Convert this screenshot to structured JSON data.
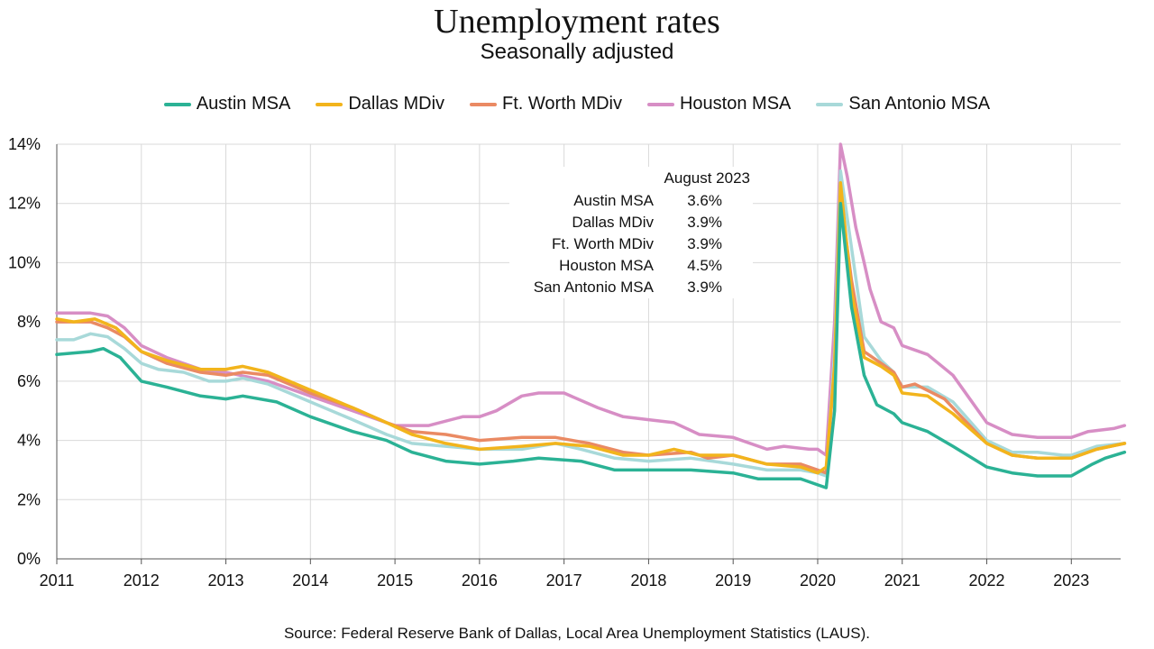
{
  "chart_data": {
    "type": "line",
    "title": "Unemployment rates",
    "subtitle": "Seasonally adjusted",
    "source": "Source:  Federal Reserve Bank of Dallas,  Local Area Unemployment Statistics (LAUS).",
    "x_ticks": [
      "2011",
      "2012",
      "2013",
      "2014",
      "2015",
      "2016",
      "2017",
      "2018",
      "2019",
      "2020",
      "2021",
      "2022",
      "2023"
    ],
    "y_ticks": [
      "0%",
      "2%",
      "4%",
      "6%",
      "8%",
      "10%",
      "12%",
      "14%"
    ],
    "ylim": [
      0,
      14
    ],
    "xlim": [
      "2011-01",
      "2023-08"
    ],
    "grid": true,
    "legend_position": "top",
    "annotation": {
      "header": "August 2023",
      "rows": [
        {
          "name": "Austin MSA",
          "value": "3.6%"
        },
        {
          "name": "Dallas MDiv",
          "value": "3.9%"
        },
        {
          "name": "Ft. Worth MDiv",
          "value": "3.9%"
        },
        {
          "name": "Houston MSA",
          "value": "4.5%"
        },
        {
          "name": "San Antonio MSA",
          "value": "3.9%"
        }
      ]
    },
    "series": [
      {
        "name": "Austin MSA",
        "color": "#2bb295",
        "points": [
          [
            2011.0,
            6.9
          ],
          [
            2011.4,
            7.0
          ],
          [
            2011.55,
            7.1
          ],
          [
            2011.75,
            6.8
          ],
          [
            2012.0,
            6.0
          ],
          [
            2012.3,
            5.8
          ],
          [
            2012.7,
            5.5
          ],
          [
            2013.0,
            5.4
          ],
          [
            2013.2,
            5.5
          ],
          [
            2013.6,
            5.3
          ],
          [
            2014.0,
            4.8
          ],
          [
            2014.5,
            4.3
          ],
          [
            2014.9,
            4.0
          ],
          [
            2015.2,
            3.6
          ],
          [
            2015.6,
            3.3
          ],
          [
            2016.0,
            3.2
          ],
          [
            2016.4,
            3.3
          ],
          [
            2016.7,
            3.4
          ],
          [
            2017.2,
            3.3
          ],
          [
            2017.6,
            3.0
          ],
          [
            2018.0,
            3.0
          ],
          [
            2018.5,
            3.0
          ],
          [
            2019.0,
            2.9
          ],
          [
            2019.3,
            2.7
          ],
          [
            2019.8,
            2.7
          ],
          [
            2020.0,
            2.5
          ],
          [
            2020.1,
            2.4
          ],
          [
            2020.2,
            5.0
          ],
          [
            2020.27,
            12.0
          ],
          [
            2020.4,
            8.5
          ],
          [
            2020.55,
            6.2
          ],
          [
            2020.7,
            5.2
          ],
          [
            2020.9,
            4.9
          ],
          [
            2021.0,
            4.6
          ],
          [
            2021.3,
            4.3
          ],
          [
            2021.6,
            3.8
          ],
          [
            2022.0,
            3.1
          ],
          [
            2022.3,
            2.9
          ],
          [
            2022.6,
            2.8
          ],
          [
            2022.9,
            2.8
          ],
          [
            2023.0,
            2.8
          ],
          [
            2023.25,
            3.2
          ],
          [
            2023.4,
            3.4
          ],
          [
            2023.63,
            3.6
          ]
        ]
      },
      {
        "name": "Dallas MDiv",
        "color": "#f2b41c",
        "points": [
          [
            2011.0,
            8.1
          ],
          [
            2011.2,
            8.0
          ],
          [
            2011.45,
            8.1
          ],
          [
            2011.7,
            7.8
          ],
          [
            2012.0,
            7.0
          ],
          [
            2012.3,
            6.7
          ],
          [
            2012.7,
            6.4
          ],
          [
            2013.0,
            6.4
          ],
          [
            2013.2,
            6.5
          ],
          [
            2013.5,
            6.3
          ],
          [
            2014.0,
            5.7
          ],
          [
            2014.5,
            5.1
          ],
          [
            2014.9,
            4.6
          ],
          [
            2015.2,
            4.2
          ],
          [
            2015.6,
            3.9
          ],
          [
            2016.0,
            3.7
          ],
          [
            2016.5,
            3.8
          ],
          [
            2016.9,
            3.9
          ],
          [
            2017.3,
            3.8
          ],
          [
            2017.7,
            3.5
          ],
          [
            2018.0,
            3.5
          ],
          [
            2018.3,
            3.7
          ],
          [
            2018.6,
            3.5
          ],
          [
            2019.0,
            3.5
          ],
          [
            2019.4,
            3.2
          ],
          [
            2019.8,
            3.1
          ],
          [
            2020.0,
            2.9
          ],
          [
            2020.1,
            3.1
          ],
          [
            2020.2,
            6.5
          ],
          [
            2020.27,
            12.7
          ],
          [
            2020.4,
            9.0
          ],
          [
            2020.55,
            6.8
          ],
          [
            2020.75,
            6.5
          ],
          [
            2020.9,
            6.2
          ],
          [
            2021.0,
            5.6
          ],
          [
            2021.3,
            5.5
          ],
          [
            2021.6,
            4.9
          ],
          [
            2022.0,
            3.9
          ],
          [
            2022.3,
            3.5
          ],
          [
            2022.6,
            3.4
          ],
          [
            2022.9,
            3.4
          ],
          [
            2023.0,
            3.4
          ],
          [
            2023.3,
            3.7
          ],
          [
            2023.63,
            3.9
          ]
        ]
      },
      {
        "name": "Ft. Worth MDiv",
        "color": "#ea8a63",
        "points": [
          [
            2011.0,
            8.0
          ],
          [
            2011.4,
            8.0
          ],
          [
            2011.6,
            7.8
          ],
          [
            2011.8,
            7.5
          ],
          [
            2012.0,
            7.0
          ],
          [
            2012.3,
            6.6
          ],
          [
            2012.7,
            6.3
          ],
          [
            2013.0,
            6.2
          ],
          [
            2013.2,
            6.3
          ],
          [
            2013.5,
            6.2
          ],
          [
            2014.0,
            5.6
          ],
          [
            2014.5,
            5.1
          ],
          [
            2014.9,
            4.6
          ],
          [
            2015.2,
            4.3
          ],
          [
            2015.6,
            4.2
          ],
          [
            2016.0,
            4.0
          ],
          [
            2016.5,
            4.1
          ],
          [
            2016.9,
            4.1
          ],
          [
            2017.3,
            3.9
          ],
          [
            2017.7,
            3.6
          ],
          [
            2018.0,
            3.5
          ],
          [
            2018.5,
            3.6
          ],
          [
            2018.7,
            3.4
          ],
          [
            2019.0,
            3.5
          ],
          [
            2019.4,
            3.2
          ],
          [
            2019.8,
            3.2
          ],
          [
            2020.0,
            3.0
          ],
          [
            2020.1,
            2.9
          ],
          [
            2020.2,
            6.5
          ],
          [
            2020.27,
            12.2
          ],
          [
            2020.4,
            9.4
          ],
          [
            2020.55,
            7.0
          ],
          [
            2020.75,
            6.6
          ],
          [
            2020.9,
            6.3
          ],
          [
            2021.0,
            5.8
          ],
          [
            2021.15,
            5.9
          ],
          [
            2021.5,
            5.4
          ],
          [
            2022.0,
            3.9
          ],
          [
            2022.3,
            3.5
          ],
          [
            2022.6,
            3.4
          ],
          [
            2022.9,
            3.4
          ],
          [
            2023.0,
            3.4
          ],
          [
            2023.3,
            3.7
          ],
          [
            2023.63,
            3.9
          ]
        ]
      },
      {
        "name": "Houston MSA",
        "color": "#d78ec5",
        "points": [
          [
            2011.0,
            8.3
          ],
          [
            2011.4,
            8.3
          ],
          [
            2011.6,
            8.2
          ],
          [
            2011.8,
            7.8
          ],
          [
            2012.0,
            7.2
          ],
          [
            2012.3,
            6.8
          ],
          [
            2012.7,
            6.4
          ],
          [
            2013.0,
            6.3
          ],
          [
            2013.5,
            6.0
          ],
          [
            2014.0,
            5.5
          ],
          [
            2014.5,
            5.0
          ],
          [
            2014.9,
            4.6
          ],
          [
            2015.0,
            4.5
          ],
          [
            2015.4,
            4.5
          ],
          [
            2015.8,
            4.8
          ],
          [
            2016.0,
            4.8
          ],
          [
            2016.2,
            5.0
          ],
          [
            2016.5,
            5.5
          ],
          [
            2016.7,
            5.6
          ],
          [
            2017.0,
            5.6
          ],
          [
            2017.4,
            5.1
          ],
          [
            2017.7,
            4.8
          ],
          [
            2018.0,
            4.7
          ],
          [
            2018.3,
            4.6
          ],
          [
            2018.6,
            4.2
          ],
          [
            2019.0,
            4.1
          ],
          [
            2019.4,
            3.7
          ],
          [
            2019.6,
            3.8
          ],
          [
            2019.9,
            3.7
          ],
          [
            2020.0,
            3.7
          ],
          [
            2020.1,
            3.5
          ],
          [
            2020.2,
            8.0
          ],
          [
            2020.27,
            14.0
          ],
          [
            2020.35,
            12.9
          ],
          [
            2020.45,
            11.2
          ],
          [
            2020.55,
            10.0
          ],
          [
            2020.62,
            9.1
          ],
          [
            2020.75,
            8.0
          ],
          [
            2020.9,
            7.8
          ],
          [
            2021.0,
            7.2
          ],
          [
            2021.3,
            6.9
          ],
          [
            2021.6,
            6.2
          ],
          [
            2021.9,
            5.0
          ],
          [
            2022.0,
            4.6
          ],
          [
            2022.3,
            4.2
          ],
          [
            2022.6,
            4.1
          ],
          [
            2022.9,
            4.1
          ],
          [
            2023.0,
            4.1
          ],
          [
            2023.2,
            4.3
          ],
          [
            2023.5,
            4.4
          ],
          [
            2023.63,
            4.5
          ]
        ]
      },
      {
        "name": "San Antonio MSA",
        "color": "#a8d9d9",
        "points": [
          [
            2011.0,
            7.4
          ],
          [
            2011.2,
            7.4
          ],
          [
            2011.4,
            7.6
          ],
          [
            2011.6,
            7.5
          ],
          [
            2011.8,
            7.1
          ],
          [
            2012.0,
            6.6
          ],
          [
            2012.2,
            6.4
          ],
          [
            2012.5,
            6.3
          ],
          [
            2012.8,
            6.0
          ],
          [
            2013.0,
            6.0
          ],
          [
            2013.2,
            6.1
          ],
          [
            2013.5,
            5.9
          ],
          [
            2014.0,
            5.3
          ],
          [
            2014.5,
            4.7
          ],
          [
            2014.9,
            4.2
          ],
          [
            2015.2,
            3.9
          ],
          [
            2015.6,
            3.8
          ],
          [
            2016.0,
            3.7
          ],
          [
            2016.5,
            3.7
          ],
          [
            2016.9,
            3.9
          ],
          [
            2017.2,
            3.7
          ],
          [
            2017.6,
            3.4
          ],
          [
            2018.0,
            3.3
          ],
          [
            2018.5,
            3.4
          ],
          [
            2019.0,
            3.2
          ],
          [
            2019.4,
            3.0
          ],
          [
            2019.8,
            3.0
          ],
          [
            2020.0,
            2.9
          ],
          [
            2020.1,
            2.8
          ],
          [
            2020.2,
            7.0
          ],
          [
            2020.27,
            13.1
          ],
          [
            2020.4,
            10.5
          ],
          [
            2020.55,
            7.5
          ],
          [
            2020.75,
            6.7
          ],
          [
            2020.9,
            6.3
          ],
          [
            2021.0,
            5.8
          ],
          [
            2021.3,
            5.8
          ],
          [
            2021.6,
            5.3
          ],
          [
            2022.0,
            4.0
          ],
          [
            2022.3,
            3.6
          ],
          [
            2022.6,
            3.6
          ],
          [
            2022.9,
            3.5
          ],
          [
            2023.0,
            3.5
          ],
          [
            2023.3,
            3.8
          ],
          [
            2023.63,
            3.9
          ]
        ]
      }
    ]
  }
}
